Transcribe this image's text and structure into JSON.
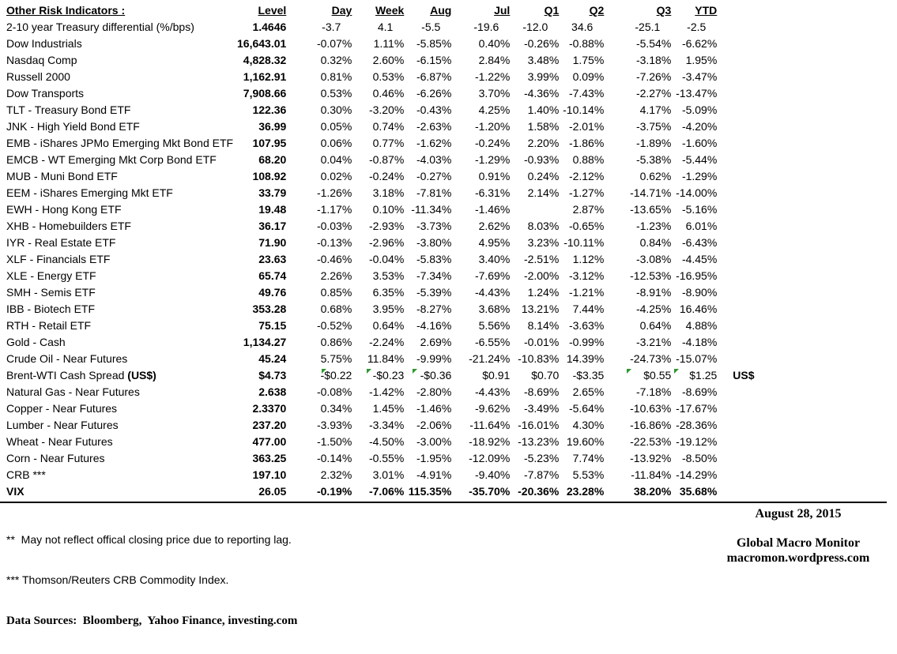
{
  "chart_data": {
    "type": "table",
    "title": "Other Risk Indicators :",
    "columns": [
      "Level",
      "Day",
      "Week",
      "Aug",
      "Jul",
      "Q1",
      "Q2",
      "Q3",
      "YTD"
    ],
    "rows": [
      {
        "label": "2-10 year Treasury differential (%/bps)",
        "style": "bps",
        "values": [
          "1.4646",
          "-3.7",
          "4.1",
          "-5.5",
          "-19.6",
          "-12.0",
          "34.6",
          "-25.1",
          "-2.5"
        ]
      },
      {
        "label": "Dow Industrials",
        "values": [
          "16,643.01",
          "-0.07%",
          "1.11%",
          "-5.85%",
          "0.40%",
          "-0.26%",
          "-0.88%",
          "-5.54%",
          "-6.62%"
        ]
      },
      {
        "label": "Nasdaq Comp",
        "values": [
          "4,828.32",
          "0.32%",
          "2.60%",
          "-6.15%",
          "2.84%",
          "3.48%",
          "1.75%",
          "-3.18%",
          "1.95%"
        ]
      },
      {
        "label": "Russell 2000",
        "values": [
          "1,162.91",
          "0.81%",
          "0.53%",
          "-6.87%",
          "-1.22%",
          "3.99%",
          "0.09%",
          "-7.26%",
          "-3.47%"
        ]
      },
      {
        "label": "Dow Transports",
        "values": [
          "7,908.66",
          "0.53%",
          "0.46%",
          "-6.26%",
          "3.70%",
          "-4.36%",
          "-7.43%",
          "-2.27%",
          "-13.47%"
        ]
      },
      {
        "label": "TLT - Treasury Bond ETF",
        "values": [
          "122.36",
          "0.30%",
          "-3.20%",
          "-0.43%",
          "4.25%",
          "1.40%",
          "-10.14%",
          "4.17%",
          "-5.09%"
        ]
      },
      {
        "label": "JNK - High Yield Bond ETF",
        "values": [
          "36.99",
          "0.05%",
          "0.74%",
          "-2.63%",
          "-1.20%",
          "1.58%",
          "-2.01%",
          "-3.75%",
          "-4.20%"
        ]
      },
      {
        "label": "EMB - iShares JPMo Emerging Mkt Bond ETF",
        "values": [
          "107.95",
          "0.06%",
          "0.77%",
          "-1.62%",
          "-0.24%",
          "2.20%",
          "-1.86%",
          "-1.89%",
          "-1.60%"
        ]
      },
      {
        "label": "EMCB - WT Emerging Mkt Corp Bond ETF",
        "values": [
          "68.20",
          "0.04%",
          "-0.87%",
          "-4.03%",
          "-1.29%",
          "-0.93%",
          "0.88%",
          "-5.38%",
          "-5.44%"
        ]
      },
      {
        "label": "MUB - Muni Bond ETF",
        "values": [
          "108.92",
          "0.02%",
          "-0.24%",
          "-0.27%",
          "0.91%",
          "0.24%",
          "-2.12%",
          "0.62%",
          "-1.29%"
        ]
      },
      {
        "label": "EEM - iShares Emerging Mkt ETF",
        "values": [
          "33.79",
          "-1.26%",
          "3.18%",
          "-7.81%",
          "-6.31%",
          "2.14%",
          "-1.27%",
          "-14.71%",
          "-14.00%"
        ]
      },
      {
        "label": "EWH - Hong Kong ETF",
        "values": [
          "19.48",
          "-1.17%",
          "0.10%",
          "-11.34%",
          "-1.46%",
          "",
          "2.87%",
          "-13.65%",
          "-5.16%"
        ]
      },
      {
        "label": "XHB - Homebuilders ETF",
        "values": [
          "36.17",
          "-0.03%",
          "-2.93%",
          "-3.73%",
          "2.62%",
          "8.03%",
          "-0.65%",
          "-1.23%",
          "6.01%"
        ]
      },
      {
        "label": "IYR - Real Estate ETF",
        "values": [
          "71.90",
          "-0.13%",
          "-2.96%",
          "-3.80%",
          "4.95%",
          "3.23%",
          "-10.11%",
          "0.84%",
          "-6.43%"
        ]
      },
      {
        "label": "XLF - Financials ETF",
        "values": [
          "23.63",
          "-0.46%",
          "-0.04%",
          "-5.83%",
          "3.40%",
          "-2.51%",
          "1.12%",
          "-3.08%",
          "-4.45%"
        ]
      },
      {
        "label": "XLE - Energy ETF",
        "values": [
          "65.74",
          "2.26%",
          "3.53%",
          "-7.34%",
          "-7.69%",
          "-2.00%",
          "-3.12%",
          "-12.53%",
          "-16.95%"
        ]
      },
      {
        "label": "SMH - Semis ETF",
        "values": [
          "49.76",
          "0.85%",
          "6.35%",
          "-5.39%",
          "-4.43%",
          "1.24%",
          "-1.21%",
          "-8.91%",
          "-8.90%"
        ]
      },
      {
        "label": "IBB - Biotech ETF",
        "values": [
          "353.28",
          "0.68%",
          "3.95%",
          "-8.27%",
          "3.68%",
          "13.21%",
          "7.44%",
          "-4.25%",
          "16.46%"
        ]
      },
      {
        "label": "RTH - Retail ETF",
        "values": [
          "75.15",
          "-0.52%",
          "0.64%",
          "-4.16%",
          "5.56%",
          "8.14%",
          "-3.63%",
          "0.64%",
          "4.88%"
        ]
      },
      {
        "label": "Gold - Cash",
        "values": [
          "1,134.27",
          "0.86%",
          "-2.24%",
          "2.69%",
          "-6.55%",
          "-0.01%",
          "-0.99%",
          "-3.21%",
          "-4.18%"
        ]
      },
      {
        "label": "Crude Oil - Near Futures",
        "values": [
          "45.24",
          "5.75%",
          "11.84%",
          "-9.99%",
          "-21.24%",
          "-10.83%",
          "14.39%",
          "-24.73%",
          "-15.07%"
        ]
      },
      {
        "label": "Brent-WTI Cash Spread (US$)",
        "bold_suffix": "(US$)",
        "suffix": "US$",
        "comment_flags": [
          "Day",
          "Week",
          "Aug",
          "Q3",
          "YTD"
        ],
        "values": [
          "$4.73",
          "-$0.22",
          "-$0.23",
          "-$0.36",
          "$0.91",
          "$0.70",
          "-$3.35",
          "$0.55",
          "$1.25"
        ]
      },
      {
        "label": "Natural Gas - Near Futures",
        "values": [
          "2.638",
          "-0.08%",
          "-1.42%",
          "-2.80%",
          "-4.43%",
          "-8.69%",
          "2.65%",
          "-7.18%",
          "-8.69%"
        ]
      },
      {
        "label": "Copper - Near Futures",
        "values": [
          "2.3370",
          "0.34%",
          "1.45%",
          "-1.46%",
          "-9.62%",
          "-3.49%",
          "-5.64%",
          "-10.63%",
          "-17.67%"
        ]
      },
      {
        "label": "Lumber - Near Futures",
        "values": [
          "237.20",
          "-3.93%",
          "-3.34%",
          "-2.06%",
          "-11.64%",
          "-16.01%",
          "4.30%",
          "-16.86%",
          "-28.36%"
        ]
      },
      {
        "label": "Wheat - Near Futures",
        "values": [
          "477.00",
          "-1.50%",
          "-4.50%",
          "-3.00%",
          "-18.92%",
          "-13.23%",
          "19.60%",
          "-22.53%",
          "-19.12%"
        ]
      },
      {
        "label": "Corn - Near Futures",
        "values": [
          "363.25",
          "-0.14%",
          "-0.55%",
          "-1.95%",
          "-12.09%",
          "-5.23%",
          "7.74%",
          "-13.92%",
          "-8.50%"
        ]
      },
      {
        "label": "CRB ***",
        "values": [
          "197.10",
          "2.32%",
          "3.01%",
          "-4.91%",
          "-9.40%",
          "-7.87%",
          "5.53%",
          "-11.84%",
          "-14.29%"
        ]
      },
      {
        "label": "VIX",
        "style": "bold",
        "values": [
          "26.05",
          "-0.19%",
          "-7.06%",
          "115.35%",
          "-35.70%",
          "-20.36%",
          "23.28%",
          "38.20%",
          "35.68%"
        ]
      }
    ]
  },
  "footnotes": {
    "line1": "**  May not reflect offical closing price due to reporting lag.",
    "line2": "*** Thomson/Reuters CRB Commodity Index.",
    "sources": "Data Sources:  Bloomberg,  Yahoo Finance, investing.com"
  },
  "footer": {
    "date": "August 28, 2015",
    "brand": "Global Macro Monitor",
    "url": "macromon.wordpress.com"
  },
  "colors": {
    "text": "#000000",
    "indicator_green": "#2d962d",
    "rule": "#000000"
  }
}
